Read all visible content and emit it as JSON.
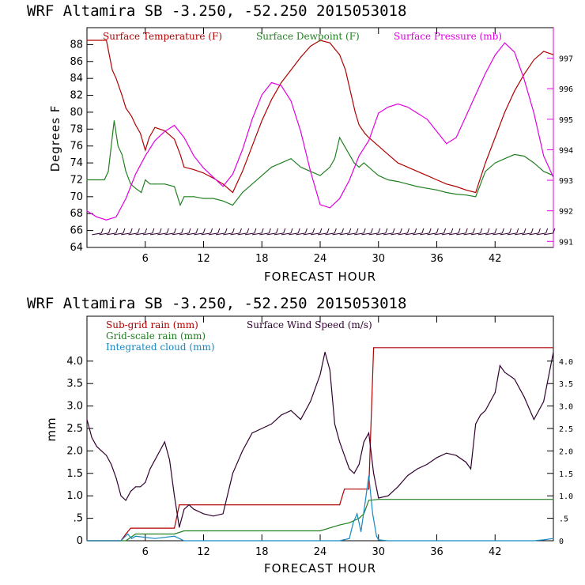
{
  "chart_data": [
    {
      "type": "line",
      "title": "WRF   Altamira  SB  -3.250, -52.250  2015053018",
      "xlabel": "FORECAST HOUR",
      "ylabel": "Degrees F",
      "xlim": [
        0,
        48
      ],
      "ylim": [
        64,
        90
      ],
      "y2lim": [
        990.8,
        998
      ],
      "x_ticks": [
        "6",
        "12",
        "18",
        "24",
        "30",
        "36",
        "42"
      ],
      "y_ticks": [
        "64",
        "66",
        "68",
        "70",
        "72",
        "74",
        "76",
        "78",
        "80",
        "82",
        "84",
        "86",
        "88"
      ],
      "y2_ticks": [
        "991",
        "992",
        "993",
        "994",
        "995",
        "996",
        "997"
      ],
      "colors": {
        "temperature": "#b00000",
        "dewpoint": "#208020",
        "pressure": "#e000e0",
        "wind": "#300030"
      },
      "series": [
        {
          "name": "Surface Temperature (F)",
          "axis": "left",
          "x": [
            0,
            2,
            2.6,
            3,
            3.6,
            4,
            4.6,
            5,
            5.5,
            6,
            6.4,
            7,
            8,
            9,
            9.6,
            10,
            11,
            12,
            13,
            14,
            15,
            16,
            17,
            18,
            19,
            20,
            21,
            22,
            23,
            24,
            25,
            25.5,
            26,
            26.6,
            27,
            27.6,
            28,
            28.6,
            29,
            29.5,
            30,
            31,
            32,
            33,
            34,
            35,
            36,
            37,
            38,
            39,
            40,
            41,
            42,
            43,
            44,
            45,
            46,
            47,
            48
          ],
          "values": [
            88.5,
            88.5,
            85,
            84,
            82,
            80.5,
            79.5,
            78.5,
            77.5,
            75.5,
            77,
            78.2,
            77.8,
            76.8,
            75,
            73.5,
            73.2,
            72.8,
            72.2,
            71.5,
            70.5,
            73,
            76,
            79,
            81.5,
            83.5,
            85,
            86.5,
            87.8,
            88.5,
            88.2,
            87.5,
            86.8,
            85,
            83,
            80,
            78.5,
            77.5,
            77,
            76.5,
            76,
            75,
            74,
            73.5,
            73,
            72.5,
            72,
            71.5,
            71.2,
            70.8,
            70.5,
            74,
            77,
            80,
            82.5,
            84.5,
            86.2,
            87.2,
            86.8
          ]
        },
        {
          "name": "Surface Dewpoint (F)",
          "axis": "left",
          "x": [
            0,
            1,
            1.8,
            2.2,
            2.8,
            3.2,
            3.6,
            4,
            4.5,
            5,
            5.6,
            6,
            6.5,
            7,
            8,
            9,
            9.6,
            10,
            11,
            12,
            13,
            14,
            15,
            16,
            17,
            18,
            19,
            20,
            21,
            22,
            23,
            24,
            25,
            25.5,
            26,
            26.5,
            27,
            27.5,
            28,
            28.5,
            29,
            29.5,
            30,
            31,
            32,
            33,
            34,
            35,
            36,
            37,
            38,
            39,
            40,
            41,
            42,
            43,
            44,
            45,
            46,
            47,
            48
          ],
          "values": [
            72,
            72,
            72,
            73,
            79,
            76,
            75,
            73,
            71.5,
            71,
            70.5,
            72,
            71.5,
            71.5,
            71.5,
            71.2,
            69,
            70,
            70,
            69.8,
            69.8,
            69.5,
            69,
            70.5,
            71.5,
            72.5,
            73.5,
            74,
            74.5,
            73.5,
            73,
            72.5,
            73.5,
            74.5,
            77,
            76,
            75,
            74,
            73.5,
            74,
            73.5,
            73,
            72.5,
            72,
            71.8,
            71.5,
            71.2,
            71,
            70.8,
            70.5,
            70.3,
            70.2,
            70,
            73,
            74,
            74.5,
            75,
            74.8,
            74,
            73,
            72.5
          ]
        },
        {
          "name": "Surface Pressure (mb)",
          "axis": "right",
          "x": [
            0,
            1,
            2,
            3,
            4,
            5,
            6,
            7,
            8,
            9,
            10,
            11,
            12,
            13,
            14,
            15,
            16,
            17,
            18,
            19,
            20,
            21,
            22,
            23,
            24,
            25,
            26,
            27,
            28,
            29,
            30,
            31,
            32,
            33,
            34,
            35,
            36,
            37,
            38,
            39,
            40,
            41,
            42,
            43,
            44,
            45,
            46,
            47,
            48
          ],
          "values": [
            992,
            991.8,
            991.7,
            991.8,
            992.4,
            993.2,
            993.8,
            994.3,
            994.6,
            994.8,
            994.4,
            993.8,
            993.4,
            993.1,
            992.8,
            993.2,
            994,
            995,
            995.8,
            996.2,
            996.1,
            995.6,
            994.6,
            993.3,
            992.2,
            992.1,
            992.4,
            993,
            993.8,
            994.3,
            995.2,
            995.4,
            995.5,
            995.4,
            995.2,
            995,
            994.6,
            994.2,
            994.4,
            995.1,
            995.8,
            996.5,
            997.1,
            997.5,
            997.2,
            996.3,
            995.2,
            993.8,
            993.1
          ]
        }
      ],
      "wind_barbs": {
        "name": "wind barbs",
        "y": 65.6
      }
    },
    {
      "type": "line",
      "title": "WRF   Altamira  SB  -3.250, -52.250  2015053018",
      "xlabel": "FORECAST HOUR",
      "ylabel": "mm",
      "xlim": [
        0,
        48
      ],
      "ylim": [
        0,
        5
      ],
      "y2lim": [
        0,
        5
      ],
      "x_ticks": [
        "6",
        "12",
        "18",
        "24",
        "30",
        "36",
        "42"
      ],
      "y_ticks": [
        "0",
        ".5",
        "1.0",
        "1.5",
        "2.0",
        "2.5",
        "3.0",
        "3.5",
        "4.0"
      ],
      "y2_ticks": [
        "0",
        ".5",
        "1.0",
        "1.5",
        "2.0",
        "2.5",
        "3.0",
        "3.5",
        "4.0"
      ],
      "colors": {
        "subgrid": "#b00000",
        "gridscale": "#208020",
        "cloud": "#1888c0",
        "wind": "#300030"
      },
      "series": [
        {
          "name": "Sub-grid rain (mm)",
          "axis": "left",
          "x": [
            0,
            3.5,
            4,
            4.5,
            5,
            9,
            9.5,
            10,
            26,
            26.5,
            28,
            29,
            29.5,
            48
          ],
          "values": [
            0,
            0,
            0.15,
            0.28,
            0.28,
            0.28,
            0.8,
            0.8,
            0.8,
            1.15,
            1.15,
            1.15,
            4.3,
            4.3
          ]
        },
        {
          "name": "Grid-scale rain (mm)",
          "axis": "left",
          "x": [
            0,
            4,
            5,
            9,
            10,
            16,
            24,
            26,
            27,
            28,
            28.5,
            29,
            30,
            48
          ],
          "values": [
            0,
            0,
            0.15,
            0.15,
            0.22,
            0.22,
            0.22,
            0.35,
            0.4,
            0.5,
            0.6,
            0.9,
            0.92,
            0.92
          ]
        },
        {
          "name": "Integrated cloud (mm)",
          "axis": "left",
          "x": [
            0,
            3.5,
            4.2,
            4.6,
            5,
            7,
            9,
            10,
            12,
            24,
            26,
            27,
            27.4,
            27.8,
            28.2,
            28.6,
            29,
            29.4,
            29.8,
            30,
            31,
            46,
            47,
            48
          ],
          "values": [
            0,
            0,
            0.15,
            0.05,
            0.1,
            0.05,
            0.1,
            0,
            0,
            0,
            0,
            0.05,
            0.4,
            0.6,
            0.2,
            0.8,
            1.45,
            0.6,
            0.1,
            0.02,
            0,
            0,
            0.02,
            0.05
          ]
        },
        {
          "name": "Surface Wind Speed (m/s)",
          "axis": "right",
          "x": [
            0,
            0.5,
            1,
            1.5,
            2,
            2.5,
            3,
            3.5,
            4,
            4.5,
            5,
            5.5,
            6,
            6.5,
            7,
            7.5,
            8,
            8.5,
            9,
            9.5,
            10,
            10.5,
            11,
            12,
            13,
            14,
            15,
            16,
            17,
            18,
            19,
            20,
            21,
            22,
            23,
            24,
            24.5,
            25,
            25.5,
            26,
            26.5,
            27,
            27.5,
            28,
            28.5,
            29,
            29.5,
            30,
            31,
            32,
            33,
            34,
            35,
            36,
            37,
            38,
            39,
            39.5,
            40,
            40.5,
            41,
            42,
            42.5,
            43,
            44,
            45,
            46,
            47,
            48
          ],
          "values": [
            2.7,
            2.3,
            2.1,
            2.0,
            1.9,
            1.7,
            1.4,
            1.0,
            0.9,
            1.1,
            1.2,
            1.2,
            1.3,
            1.6,
            1.8,
            2.0,
            2.2,
            1.8,
            1.0,
            0.3,
            0.7,
            0.8,
            0.7,
            0.6,
            0.55,
            0.6,
            1.5,
            2.0,
            2.4,
            2.5,
            2.6,
            2.8,
            2.9,
            2.7,
            3.1,
            3.7,
            4.2,
            3.8,
            2.6,
            2.2,
            1.9,
            1.6,
            1.5,
            1.7,
            2.2,
            2.4,
            1.5,
            0.95,
            1.0,
            1.2,
            1.45,
            1.6,
            1.7,
            1.85,
            1.95,
            1.9,
            1.75,
            1.6,
            2.6,
            2.8,
            2.9,
            3.3,
            3.9,
            3.75,
            3.6,
            3.2,
            2.7,
            3.1,
            4.2
          ]
        }
      ]
    }
  ]
}
